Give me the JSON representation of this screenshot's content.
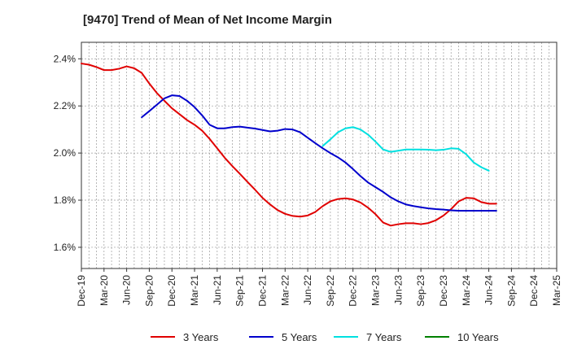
{
  "chart_data": {
    "type": "line",
    "title": "[9470]  Trend of Mean of Net Income Margin",
    "xlabel": "",
    "ylabel": "",
    "x_ticks": [
      "Dec-19",
      "Mar-20",
      "Jun-20",
      "Sep-20",
      "Dec-20",
      "Mar-21",
      "Jun-21",
      "Sep-21",
      "Dec-21",
      "Mar-22",
      "Jun-22",
      "Sep-22",
      "Dec-22",
      "Mar-23",
      "Jun-23",
      "Sep-23",
      "Dec-23",
      "Mar-24",
      "Jun-24",
      "Sep-24",
      "Dec-24",
      "Mar-25"
    ],
    "y_ticks": [
      "1.6%",
      "1.8%",
      "2.0%",
      "2.2%",
      "2.4%"
    ],
    "y_tick_values": [
      1.6,
      1.8,
      2.0,
      2.2,
      2.4
    ],
    "ylim": [
      1.51,
      2.47
    ],
    "grid": true,
    "legend_position": "bottom",
    "series": [
      {
        "name": "3 Years",
        "color": "#e00000",
        "start_index": 0,
        "values": [
          2.38,
          2.375,
          2.365,
          2.352,
          2.352,
          2.358,
          2.368,
          2.36,
          2.34,
          2.295,
          2.255,
          2.222,
          2.19,
          2.165,
          2.14,
          2.12,
          2.095,
          2.06,
          2.02,
          1.98,
          1.945,
          1.912,
          1.878,
          1.845,
          1.81,
          1.782,
          1.758,
          1.742,
          1.733,
          1.73,
          1.735,
          1.75,
          1.775,
          1.795,
          1.805,
          1.808,
          1.803,
          1.79,
          1.768,
          1.74,
          1.705,
          1.692,
          1.698,
          1.702,
          1.702,
          1.698,
          1.703,
          1.715,
          1.735,
          1.762,
          1.795,
          1.81,
          1.808,
          1.792,
          1.785,
          1.785
        ]
      },
      {
        "name": "5 Years",
        "color": "#0000cc",
        "start_index": 8,
        "values": [
          2.152,
          2.178,
          2.205,
          2.232,
          2.245,
          2.242,
          2.222,
          2.195,
          2.16,
          2.12,
          2.105,
          2.105,
          2.11,
          2.112,
          2.108,
          2.104,
          2.098,
          2.092,
          2.095,
          2.102,
          2.1,
          2.088,
          2.065,
          2.042,
          2.02,
          2.0,
          1.982,
          1.96,
          1.932,
          1.902,
          1.875,
          1.855,
          1.835,
          1.812,
          1.795,
          1.782,
          1.775,
          1.77,
          1.765,
          1.762,
          1.76,
          1.757,
          1.755,
          1.755,
          1.755,
          1.755,
          1.755,
          1.755
        ]
      },
      {
        "name": "7 Years",
        "color": "#00e0e0",
        "start_index": 32,
        "values": [
          2.03,
          2.058,
          2.088,
          2.105,
          2.11,
          2.1,
          2.078,
          2.048,
          2.015,
          2.005,
          2.01,
          2.015,
          2.015,
          2.015,
          2.014,
          2.012,
          2.014,
          2.02,
          2.018,
          1.995,
          1.96,
          1.94,
          1.925
        ]
      },
      {
        "name": "10 Years",
        "color": "#008000",
        "start_index": 0,
        "values": []
      }
    ]
  }
}
